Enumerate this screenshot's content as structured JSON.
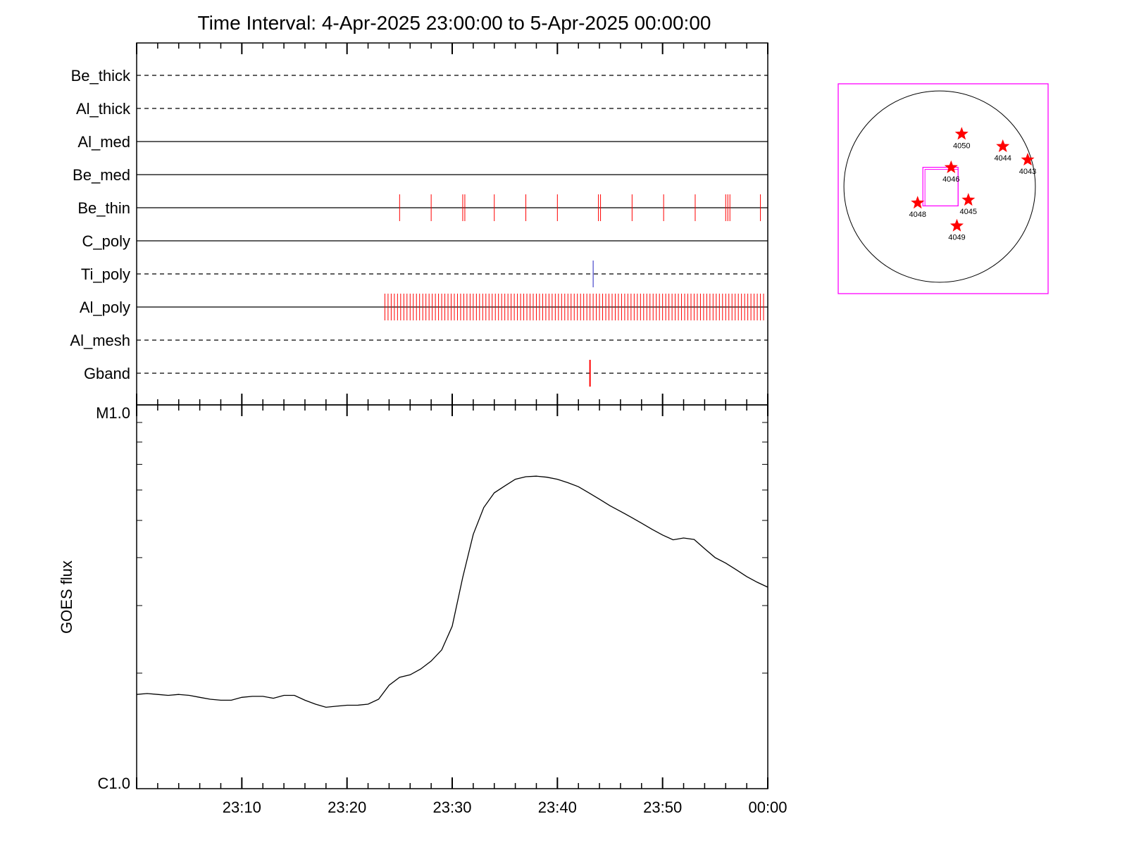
{
  "chart_data": [
    {
      "type": "timeline",
      "title": "Time Interval:  4-Apr-2025 23:00:00 to  5-Apr-2025 00:00:00",
      "x_unit": "minutes",
      "xlim": [
        0,
        60
      ],
      "tick_labels": [
        "23:10",
        "23:20",
        "23:30",
        "23:40",
        "23:50",
        "00:00"
      ],
      "tick_positions": [
        10,
        20,
        30,
        40,
        50,
        60
      ],
      "rows": [
        {
          "name": "Be_thick",
          "style": "dashed",
          "events": []
        },
        {
          "name": "Al_thick",
          "style": "dashed",
          "events": []
        },
        {
          "name": "Al_med",
          "style": "solid",
          "events": []
        },
        {
          "name": "Be_med",
          "style": "solid",
          "events": []
        },
        {
          "name": "Be_thin",
          "style": "solid",
          "event_color": "#ff0000",
          "events": [
            25.0,
            28.0,
            31.0,
            31.2,
            34.0,
            37.0,
            40.0,
            43.9,
            44.1,
            47.1,
            50.1,
            53.1,
            56.0,
            56.2,
            56.4,
            59.3
          ]
        },
        {
          "name": "C_poly",
          "style": "solid",
          "events": []
        },
        {
          "name": "Ti_poly",
          "style": "dashed",
          "event_color": "#2020c0",
          "events": [
            43.4
          ]
        },
        {
          "name": "Al_poly",
          "style": "solid",
          "event_color": "#ff0000",
          "events_range": {
            "start": 23.6,
            "end": 59.6,
            "step": 0.3
          }
        },
        {
          "name": "Al_mesh",
          "style": "dashed",
          "events": []
        },
        {
          "name": "Gband",
          "style": "dashed",
          "event_color": "#ff0000",
          "events": [
            43.1
          ]
        }
      ]
    },
    {
      "type": "line",
      "ylabel": "GOES flux",
      "y_scale": "log",
      "ylim": [
        1e-06,
        1e-05
      ],
      "y_tick_labels": [
        {
          "value": 1e-05,
          "label": "M1.0"
        },
        {
          "value": 1e-06,
          "label": "C1.0"
        }
      ],
      "xlim": [
        0,
        60
      ],
      "tick_labels": [
        "23:10",
        "23:20",
        "23:30",
        "23:40",
        "23:50",
        "00:00"
      ],
      "tick_positions": [
        10,
        20,
        30,
        40,
        50,
        60
      ],
      "line_color": "#000000",
      "series": [
        {
          "x": [
            0,
            1,
            2,
            3,
            4,
            5,
            6,
            7,
            8,
            9,
            10,
            11,
            12,
            13,
            14,
            15,
            16,
            17,
            18,
            19,
            20,
            21,
            22,
            23,
            24,
            25,
            26,
            27,
            28,
            29,
            30,
            31,
            32,
            33,
            34,
            35,
            36,
            37,
            38,
            39,
            40,
            41,
            42,
            43,
            44,
            45,
            46,
            47,
            48,
            49,
            50,
            51,
            52,
            53,
            54,
            55,
            56,
            57,
            58,
            59,
            60
          ],
          "y": [
            1.76e-06,
            1.77e-06,
            1.76e-06,
            1.75e-06,
            1.76e-06,
            1.75e-06,
            1.73e-06,
            1.71e-06,
            1.7e-06,
            1.7e-06,
            1.73e-06,
            1.74e-06,
            1.74e-06,
            1.72e-06,
            1.75e-06,
            1.75e-06,
            1.7e-06,
            1.66e-06,
            1.63e-06,
            1.64e-06,
            1.65e-06,
            1.65e-06,
            1.66e-06,
            1.71e-06,
            1.86e-06,
            1.95e-06,
            1.98e-06,
            2.05e-06,
            2.15e-06,
            2.3e-06,
            2.65e-06,
            3.55e-06,
            4.6e-06,
            5.4e-06,
            5.9e-06,
            6.15e-06,
            6.4e-06,
            6.5e-06,
            6.52e-06,
            6.48e-06,
            6.4e-06,
            6.27e-06,
            6.12e-06,
            5.9e-06,
            5.68e-06,
            5.46e-06,
            5.28e-06,
            5.1e-06,
            4.92e-06,
            4.74e-06,
            4.58e-06,
            4.45e-06,
            4.5e-06,
            4.46e-06,
            4.22e-06,
            4e-06,
            3.87e-06,
            3.72e-06,
            3.57e-06,
            3.45e-06,
            3.35e-06
          ]
        }
      ]
    },
    {
      "type": "scatter",
      "subtype": "solar-disk-map",
      "frame_color": "#ff00ff",
      "marker_color": "#ff0000",
      "marker": "star",
      "xlim": [
        -1.25,
        1.25
      ],
      "ylim": [
        -1.25,
        1.25
      ],
      "disk_radius": 1.0,
      "fov_box": {
        "x": [
          -0.2,
          0.22
        ],
        "y": [
          0.23,
          -0.23
        ]
      },
      "points": [
        {
          "label": "4050",
          "x": 0.23,
          "y": 0.55
        },
        {
          "label": "4044",
          "x": 0.66,
          "y": 0.42
        },
        {
          "label": "4043",
          "x": 0.92,
          "y": 0.28
        },
        {
          "label": "4046",
          "x": 0.12,
          "y": 0.2
        },
        {
          "label": "4045",
          "x": 0.3,
          "y": -0.14
        },
        {
          "label": "4048",
          "x": -0.23,
          "y": -0.17
        },
        {
          "label": "4049",
          "x": 0.18,
          "y": -0.41
        }
      ]
    }
  ]
}
